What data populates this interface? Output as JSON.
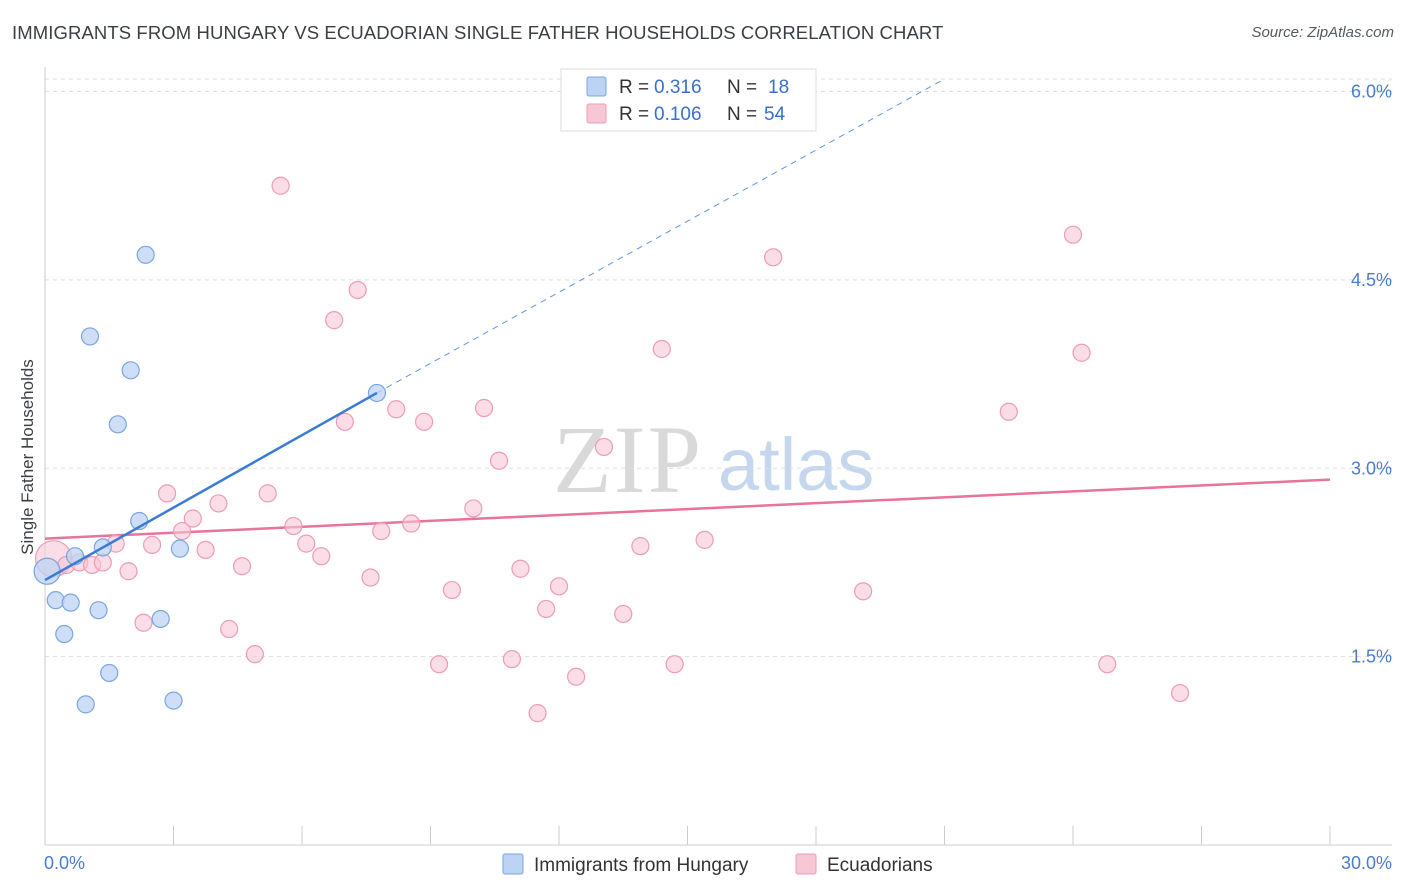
{
  "header": {
    "title": "IMMIGRANTS FROM HUNGARY VS ECUADORIAN SINGLE FATHER HOUSEHOLDS CORRELATION CHART",
    "source": "Source: ZipAtlas.com"
  },
  "watermark": {
    "zip": "ZIP",
    "atlas": "atlas"
  },
  "colors": {
    "blue_fill": "#bcd3f3",
    "blue_stroke": "#7aa6e0",
    "blue_line": "#3a7bd5",
    "pink_fill": "#f7c7d6",
    "pink_stroke": "#ee9bb4",
    "pink_line": "#e8739c",
    "grid": "#dddddd",
    "tick_text": "#4a7ccc"
  },
  "legend": {
    "rows": [
      {
        "r_label": "R =",
        "r_value": "0.316",
        "n_label": "N =",
        "n_value": "18"
      },
      {
        "r_label": "R =",
        "r_value": "0.106",
        "n_label": "N =",
        "n_value": "54"
      }
    ]
  },
  "bottom_legend": {
    "series1": "Immigrants from Hungary",
    "series2": "Ecuadorians"
  },
  "chart_data": {
    "type": "scatter",
    "title": "IMMIGRANTS FROM HUNGARY VS ECUADORIAN SINGLE FATHER HOUSEHOLDS CORRELATION CHART",
    "xlabel": "",
    "ylabel": "Single Father Households",
    "xlim": [
      0,
      30
    ],
    "ylim": [
      0,
      6.1
    ],
    "x_tick_labels": [
      "0.0%",
      "30.0%"
    ],
    "y_ticks": [
      1.5,
      3.0,
      4.5,
      6.0
    ],
    "y_tick_labels": [
      "1.5%",
      "3.0%",
      "4.5%",
      "6.0%"
    ],
    "grid": true,
    "series": [
      {
        "name": "Immigrants from Hungary",
        "R": 0.316,
        "N": 18,
        "trend": {
          "x0": 0.0,
          "y0": 2.11,
          "x1": 7.75,
          "y1": 3.6,
          "dash_to_x": 21.0,
          "dash_to_y": 6.1
        },
        "points": [
          [
            0.05,
            2.18
          ],
          [
            0.25,
            1.95
          ],
          [
            0.45,
            1.68
          ],
          [
            0.6,
            1.93
          ],
          [
            0.7,
            2.3
          ],
          [
            0.95,
            1.12
          ],
          [
            1.05,
            4.05
          ],
          [
            1.25,
            1.87
          ],
          [
            1.35,
            2.37
          ],
          [
            1.5,
            1.37
          ],
          [
            1.7,
            3.35
          ],
          [
            2.0,
            3.78
          ],
          [
            2.2,
            2.58
          ],
          [
            2.35,
            4.7
          ],
          [
            2.7,
            1.8
          ],
          [
            3.0,
            1.15
          ],
          [
            3.15,
            2.36
          ],
          [
            7.75,
            3.6
          ]
        ]
      },
      {
        "name": "Ecuadorians",
        "R": 0.106,
        "N": 54,
        "trend": {
          "x0": 0.0,
          "y0": 2.44,
          "x1": 30.0,
          "y1": 2.91
        },
        "points": [
          [
            0.2,
            2.28
          ],
          [
            0.5,
            2.23
          ],
          [
            0.8,
            2.25
          ],
          [
            1.1,
            2.23
          ],
          [
            1.35,
            2.25
          ],
          [
            1.65,
            2.4
          ],
          [
            1.95,
            2.18
          ],
          [
            2.3,
            1.77
          ],
          [
            2.5,
            2.39
          ],
          [
            2.85,
            2.8
          ],
          [
            3.2,
            2.5
          ],
          [
            3.45,
            2.6
          ],
          [
            3.75,
            2.35
          ],
          [
            4.05,
            2.72
          ],
          [
            4.3,
            1.72
          ],
          [
            4.6,
            2.22
          ],
          [
            4.9,
            1.52
          ],
          [
            5.2,
            2.8
          ],
          [
            5.5,
            5.25
          ],
          [
            5.8,
            2.54
          ],
          [
            6.1,
            2.4
          ],
          [
            6.45,
            2.3
          ],
          [
            6.75,
            4.18
          ],
          [
            7.0,
            3.37
          ],
          [
            7.3,
            4.42
          ],
          [
            7.6,
            2.13
          ],
          [
            7.85,
            2.5
          ],
          [
            8.2,
            3.47
          ],
          [
            8.55,
            2.56
          ],
          [
            8.85,
            3.37
          ],
          [
            9.2,
            1.44
          ],
          [
            9.5,
            2.03
          ],
          [
            10.0,
            2.68
          ],
          [
            10.25,
            3.48
          ],
          [
            10.6,
            3.06
          ],
          [
            10.9,
            1.48
          ],
          [
            11.1,
            2.2
          ],
          [
            11.5,
            1.05
          ],
          [
            11.7,
            1.88
          ],
          [
            12.0,
            2.06
          ],
          [
            12.4,
            1.34
          ],
          [
            13.05,
            3.17
          ],
          [
            13.5,
            1.84
          ],
          [
            13.9,
            2.38
          ],
          [
            14.4,
            3.95
          ],
          [
            14.7,
            1.44
          ],
          [
            15.4,
            2.43
          ],
          [
            17.0,
            4.68
          ],
          [
            19.1,
            2.02
          ],
          [
            22.5,
            3.45
          ],
          [
            24.0,
            4.86
          ],
          [
            24.2,
            3.92
          ],
          [
            24.8,
            1.44
          ],
          [
            26.5,
            1.21
          ]
        ]
      }
    ]
  }
}
